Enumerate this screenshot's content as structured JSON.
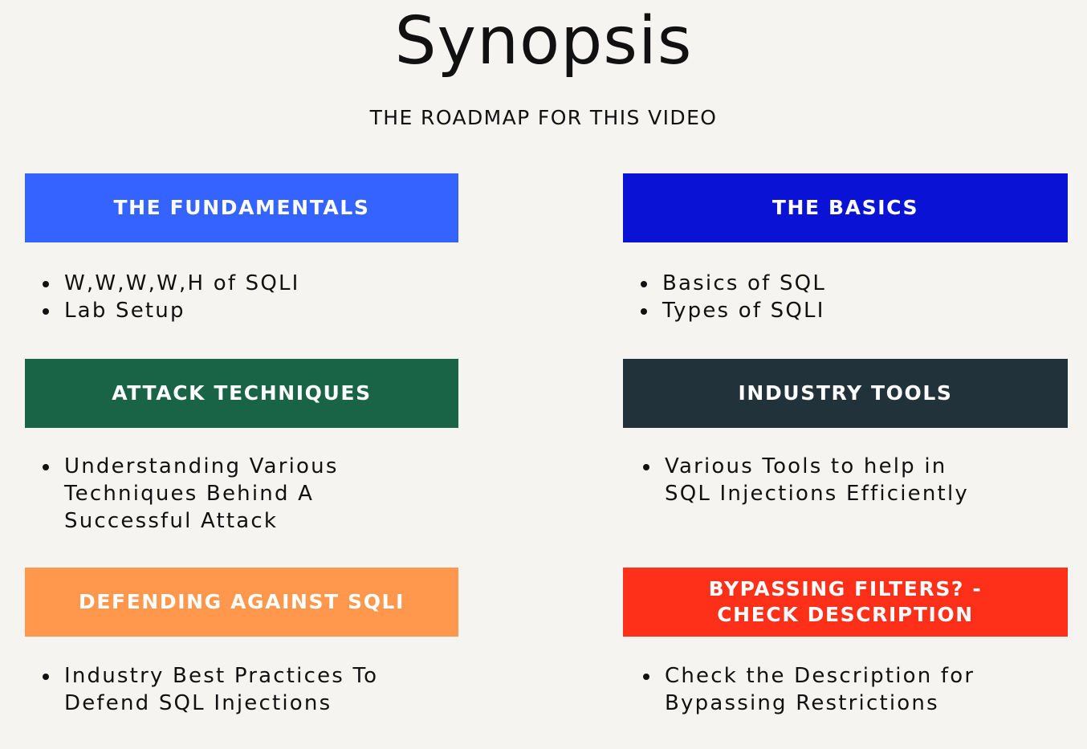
{
  "title": "Synopsis",
  "subtitle": "THE ROADMAP FOR THIS VIDEO",
  "sections": [
    {
      "header": "THE FUNDAMENTALS",
      "color": "#3563ff",
      "bullets": [
        "W,W,W,W,H of SQLI",
        "Lab Setup"
      ]
    },
    {
      "header": "THE BASICS",
      "color": "#0a12d6",
      "bullets": [
        "Basics of SQL",
        "Types of SQLI"
      ]
    },
    {
      "header": "ATTACK TECHNIQUES",
      "color": "#196446",
      "bullets": [
        "Understanding Various\nTechniques Behind A\nSuccessful Attack"
      ]
    },
    {
      "header": "INDUSTRY TOOLS",
      "color": "#22323a",
      "bullets": [
        "Various Tools to help in\nSQL Injections Efficiently"
      ]
    },
    {
      "header": "DEFENDING AGAINST SQLI",
      "color": "#ff974d",
      "bullets": [
        "Industry Best Practices To\nDefend SQL Injections"
      ]
    },
    {
      "header_lines": [
        "BYPASSING FILTERS? -",
        "CHECK DESCRIPTION"
      ],
      "color": "#ff3019",
      "bullets": [
        "Check the Description for\nBypassing Restrictions"
      ]
    }
  ]
}
